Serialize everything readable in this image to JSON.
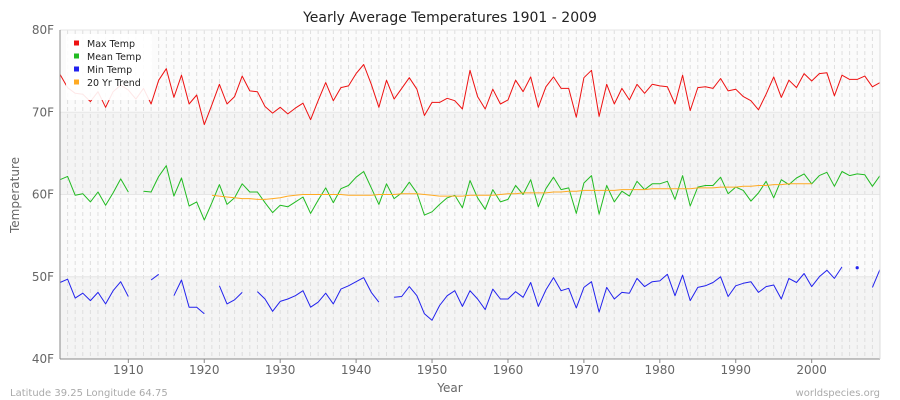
{
  "chart_data": {
    "type": "line",
    "title": "Yearly Average Temperatures 1901 - 2009",
    "xlabel": "Year",
    "ylabel": "Temperature",
    "xlim": [
      1901,
      2009
    ],
    "ylim": [
      40,
      80
    ],
    "x_ticks": [
      1910,
      1920,
      1930,
      1940,
      1950,
      1960,
      1970,
      1980,
      1990,
      2000
    ],
    "y_ticks": [
      {
        "v": 40,
        "label": "40F"
      },
      {
        "v": 50,
        "label": "50F"
      },
      {
        "v": 60,
        "label": "60F"
      },
      {
        "v": 70,
        "label": "70F"
      },
      {
        "v": 80,
        "label": "80F"
      }
    ],
    "grid": true,
    "legend_position": "top-left",
    "start_year": 1901,
    "series": [
      {
        "name": "Max Temp",
        "color": "#ee1111",
        "values": [
          74.6,
          73.0,
          72.3,
          72.2,
          71.3,
          72.5,
          70.6,
          72.5,
          73.3,
          72.7,
          71.6,
          72.9,
          71.0,
          73.9,
          75.3,
          71.8,
          74.5,
          71.0,
          72.1,
          68.5,
          70.9,
          73.4,
          71.0,
          71.9,
          74.4,
          72.6,
          72.5,
          70.7,
          69.9,
          70.6,
          69.8,
          70.5,
          71.1,
          69.1,
          71.4,
          73.6,
          71.4,
          73.0,
          73.2,
          74.7,
          75.8,
          73.4,
          70.6,
          73.9,
          71.6,
          72.9,
          74.2,
          72.8,
          69.6,
          71.2,
          71.2,
          71.7,
          71.4,
          70.4,
          75.1,
          71.9,
          70.4,
          72.8,
          71.0,
          71.5,
          73.9,
          72.5,
          74.3,
          70.6,
          73.1,
          74.3,
          72.9,
          72.9,
          69.4,
          74.2,
          75.1,
          69.5,
          73.4,
          71.0,
          72.9,
          71.5,
          73.4,
          72.3,
          73.4,
          73.2,
          73.1,
          71.0,
          74.5,
          70.2,
          73.0,
          73.1,
          72.9,
          74.1,
          72.6,
          72.8,
          71.9,
          71.4,
          70.3,
          72.2,
          74.3,
          71.8,
          73.9,
          73.0,
          74.7,
          73.8,
          74.7,
          74.8,
          72.0,
          74.5,
          74.0,
          74.0,
          74.4,
          73.1,
          73.6
        ]
      },
      {
        "name": "Mean Temp",
        "color": "#22bb22",
        "values": [
          61.8,
          62.2,
          59.9,
          60.1,
          59.1,
          60.3,
          58.7,
          60.2,
          61.9,
          60.3,
          null,
          60.4,
          60.3,
          62.2,
          63.5,
          59.8,
          62.0,
          58.6,
          59.1,
          56.9,
          59.0,
          61.2,
          58.8,
          59.6,
          61.3,
          60.3,
          60.3,
          59.0,
          57.8,
          58.7,
          58.5,
          59.1,
          59.7,
          57.7,
          59.3,
          60.8,
          59.0,
          60.7,
          61.1,
          62.1,
          62.8,
          60.8,
          58.8,
          61.3,
          59.5,
          60.2,
          61.5,
          60.2,
          57.5,
          57.9,
          58.8,
          59.6,
          59.9,
          58.4,
          61.7,
          59.6,
          58.2,
          60.6,
          59.1,
          59.4,
          61.1,
          60.0,
          61.8,
          58.5,
          60.7,
          62.1,
          60.6,
          60.8,
          57.7,
          61.4,
          62.3,
          57.6,
          61.1,
          59.1,
          60.4,
          59.8,
          61.6,
          60.6,
          61.3,
          61.3,
          61.6,
          59.4,
          62.3,
          58.6,
          60.9,
          61.1,
          61.1,
          62.1,
          60.1,
          60.9,
          60.5,
          59.2,
          60.2,
          61.6,
          59.6,
          61.8,
          61.2,
          62.0,
          62.5,
          61.3,
          62.3,
          62.7,
          61.0,
          62.8,
          62.3,
          62.5,
          62.4,
          61.0,
          62.3
        ]
      },
      {
        "name": "Min Temp",
        "color": "#2222ee",
        "values": [
          49.3,
          49.7,
          47.4,
          48.0,
          47.1,
          48.1,
          46.7,
          48.3,
          49.4,
          47.6,
          null,
          null,
          49.6,
          50.3,
          null,
          47.7,
          49.6,
          46.3,
          46.3,
          45.5,
          null,
          48.9,
          46.7,
          47.2,
          48.1,
          null,
          48.2,
          47.3,
          45.8,
          47.0,
          47.3,
          47.7,
          48.3,
          46.3,
          46.9,
          48.0,
          46.7,
          48.5,
          48.9,
          49.4,
          49.9,
          48.1,
          46.9,
          null,
          47.5,
          47.6,
          48.8,
          47.7,
          45.5,
          44.7,
          46.5,
          47.7,
          48.3,
          46.4,
          48.3,
          47.3,
          46.0,
          48.5,
          47.3,
          47.3,
          48.2,
          47.5,
          49.3,
          46.4,
          48.4,
          49.9,
          48.3,
          48.6,
          46.2,
          48.7,
          49.4,
          45.7,
          48.7,
          47.3,
          48.1,
          48.0,
          49.8,
          48.8,
          49.4,
          49.5,
          50.3,
          47.7,
          50.2,
          47.1,
          48.7,
          48.9,
          49.3,
          50.0,
          47.6,
          48.9,
          49.2,
          49.4,
          48.1,
          48.8,
          49.0,
          47.3,
          49.8,
          49.3,
          50.4,
          48.8,
          50.0,
          50.8,
          49.8,
          51.2,
          null,
          51.1,
          null,
          48.7,
          50.9
        ]
      },
      {
        "name": "20 Yr Trend",
        "color": "#ffaa22",
        "start_year": 1921,
        "values": [
          59.9,
          59.8,
          59.7,
          59.6,
          59.5,
          59.5,
          59.4,
          59.4,
          59.5,
          59.6,
          59.8,
          59.9,
          60.0,
          60.0,
          60.0,
          60.0,
          60.0,
          60.0,
          59.9,
          59.9,
          59.9,
          59.9,
          60.0,
          60.0,
          60.0,
          60.1,
          60.1,
          60.1,
          60.0,
          59.9,
          59.8,
          59.8,
          59.8,
          59.8,
          59.9,
          59.9,
          59.9,
          59.9,
          60.0,
          60.1,
          60.1,
          60.2,
          60.2,
          60.2,
          60.2,
          60.3,
          60.3,
          60.4,
          60.4,
          60.5,
          60.5,
          60.5,
          60.5,
          60.5,
          60.6,
          60.6,
          60.6,
          60.6,
          60.7,
          60.7,
          60.7,
          60.7,
          60.7,
          60.7,
          60.8,
          60.8,
          60.8,
          60.9,
          60.9,
          60.9,
          61.0,
          61.0,
          61.1,
          61.1,
          61.2,
          61.2,
          61.3,
          61.3,
          61.3,
          61.3
        ]
      }
    ]
  },
  "footer": {
    "location": "Latitude 39.25 Longitude 64.75",
    "source": "worldspecies.org"
  }
}
